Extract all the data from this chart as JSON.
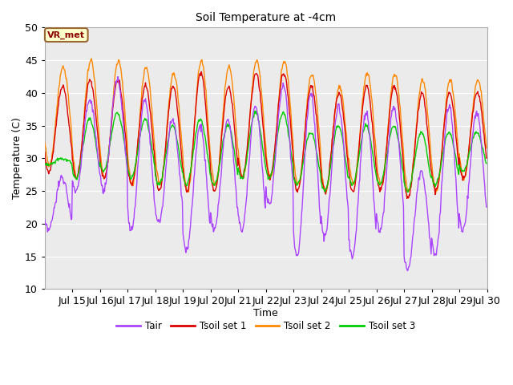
{
  "title": "Soil Temperature at -4cm",
  "xlabel": "Time",
  "ylabel": "Temperature (C)",
  "ylim": [
    10,
    50
  ],
  "xlim_days": [
    14.0,
    30.0
  ],
  "x_ticks": [
    15,
    16,
    17,
    18,
    19,
    20,
    21,
    22,
    23,
    24,
    25,
    26,
    27,
    28,
    29,
    30
  ],
  "x_tick_labels": [
    "Jul 15",
    "Jul 16",
    "Jul 17",
    "Jul 18",
    "Jul 19",
    "Jul 20",
    "Jul 21",
    "Jul 22",
    "Jul 23",
    "Jul 24",
    "Jul 25",
    "Jul 26",
    "Jul 27",
    "Jul 28",
    "Jul 29",
    "Jul 30"
  ],
  "color_tair": "#AA44FF",
  "color_tsoil1": "#DD0000",
  "color_tsoil2": "#FF8800",
  "color_tsoil3": "#00CC00",
  "bg_color": "#EBEBEB",
  "annotation_text": "VR_met",
  "legend_labels": [
    "Tair",
    "Tsoil set 1",
    "Tsoil set 2",
    "Tsoil set 3"
  ],
  "tair_day_max": [
    27,
    39,
    42,
    39,
    36,
    35,
    36,
    38,
    41,
    40,
    38,
    37,
    38,
    28,
    38,
    37
  ],
  "tair_day_min": [
    19,
    25,
    25,
    19,
    20,
    16,
    19,
    19,
    23,
    15,
    18,
    15,
    19,
    13,
    15,
    19
  ],
  "tsoil1_day_max": [
    41,
    42,
    42,
    41,
    41,
    43,
    41,
    43,
    43,
    41,
    40,
    41,
    41,
    40,
    40,
    40
  ],
  "tsoil1_day_min": [
    28,
    27,
    27,
    26,
    25,
    25,
    25,
    27,
    27,
    25,
    25,
    25,
    25,
    24,
    25,
    27
  ],
  "tsoil2_day_max": [
    44,
    45,
    45,
    44,
    43,
    45,
    44,
    45,
    45,
    43,
    41,
    43,
    43,
    42,
    42,
    42
  ],
  "tsoil2_day_min": [
    29,
    27,
    27,
    26,
    26,
    25,
    26,
    27,
    27,
    26,
    25,
    26,
    26,
    25,
    25,
    27
  ],
  "tsoil3_day_max": [
    30,
    36,
    37,
    36,
    35,
    36,
    35,
    37,
    37,
    34,
    35,
    35,
    35,
    34,
    34,
    34
  ],
  "tsoil3_day_min": [
    29,
    27,
    28,
    27,
    26,
    26,
    26,
    27,
    27,
    26,
    25,
    26,
    26,
    25,
    26,
    28
  ]
}
